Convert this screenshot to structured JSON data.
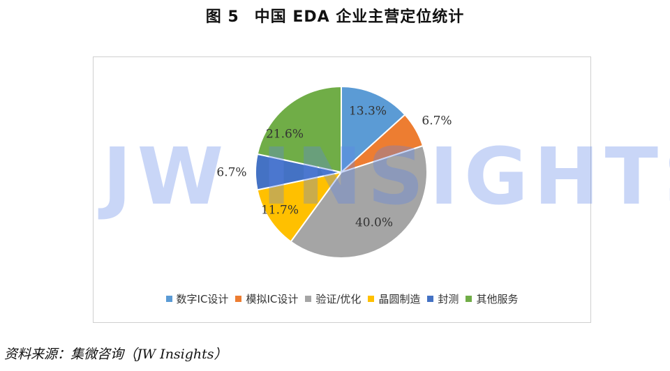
{
  "figure": {
    "number": "图 5",
    "title": "中国 EDA 企业主营定位统计"
  },
  "watermark": "JW INSIGHTS",
  "source": "资料来源：集微咨询（JW Insights）",
  "chart_data": {
    "type": "pie",
    "title": "",
    "legend_position": "bottom",
    "slices": [
      {
        "label": "数字IC设计",
        "value": 13.3,
        "value_label": "13.3%",
        "color": "#5B9BD5"
      },
      {
        "label": "模拟IC设计",
        "value": 6.7,
        "value_label": "6.7%",
        "color": "#ED7D31"
      },
      {
        "label": "验证/优化",
        "value": 40.0,
        "value_label": "40.0%",
        "color": "#A5A5A5"
      },
      {
        "label": "晶圆制造",
        "value": 11.7,
        "value_label": "11.7%",
        "color": "#FFC000"
      },
      {
        "label": "封测",
        "value": 6.7,
        "value_label": "6.7%",
        "color": "#4472C4"
      },
      {
        "label": "其他服务",
        "value": 21.6,
        "value_label": "21.6%",
        "color": "#70AD47"
      }
    ]
  }
}
